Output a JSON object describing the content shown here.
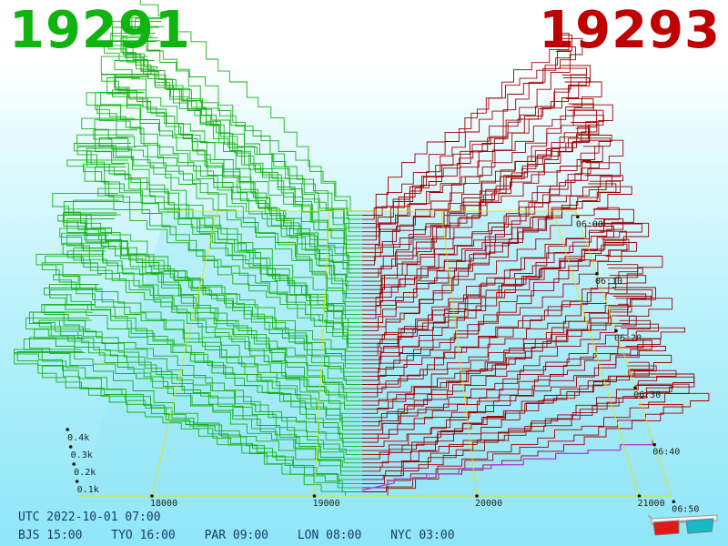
{
  "header": {
    "bid_price": "19291",
    "ask_price": "19293",
    "bid_color": "#0fb40f",
    "ask_color": "#c00000"
  },
  "chart_data": {
    "type": "area",
    "subtype": "3d-order-book-depth-history",
    "x_axis": {
      "ticks": [
        "18000",
        "19000",
        "20000",
        "21000"
      ],
      "range": [
        17550,
        21200
      ]
    },
    "depth_axis": {
      "ticks": [
        "0.1k",
        "0.2k",
        "0.3k",
        "0.4k"
      ]
    },
    "time_axis": {
      "ticks": [
        "06:00",
        "06:10",
        "06:20",
        "06:30",
        "06:40",
        "06:50"
      ]
    },
    "series": [
      {
        "side": "bid",
        "color": "#16b316",
        "mid_price": 19291
      },
      {
        "side": "ask",
        "color": "#a00000",
        "mid_price": 19293
      }
    ],
    "highlight_color": "#b040e0",
    "grid_color": "#e8e000"
  },
  "footer": {
    "utc": "UTC 2022-10-01 07:00",
    "clocks": [
      "BJS 15:00",
      "TYO 16:00",
      "PAR 09:00",
      "LON 08:00",
      "NYC 03:00"
    ]
  },
  "icons": {
    "glasses": "3d-glasses-icon"
  }
}
